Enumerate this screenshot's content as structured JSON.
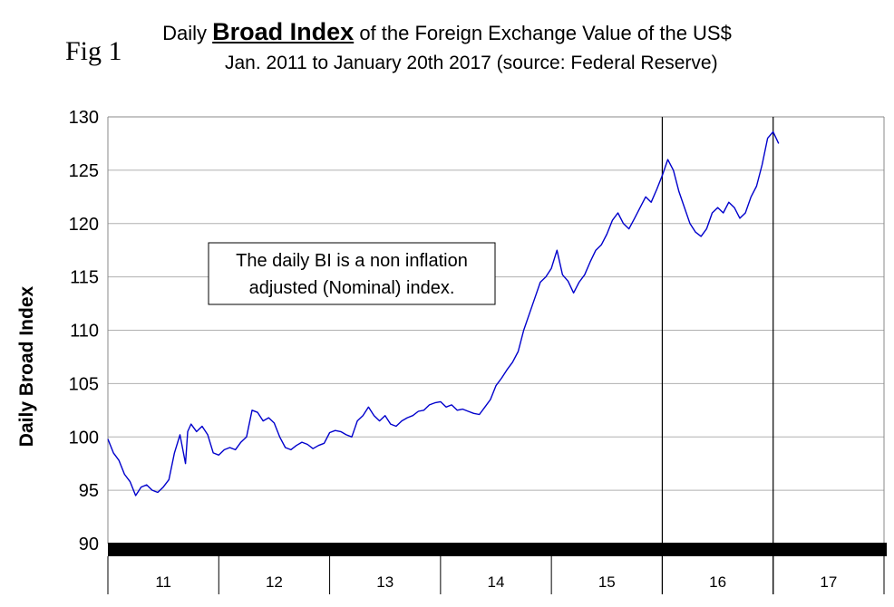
{
  "fig_label": "Fig 1",
  "chart_data": {
    "type": "line",
    "title": {
      "prefix": "Daily ",
      "bold": "Broad Index",
      "suffix": " of the Foreign Exchange Value of the US$"
    },
    "subtitle": "Jan. 2011 to January 20th 2017 (source: Federal Reserve)",
    "ylabel": "Daily Broad Index",
    "xlabel": "",
    "ylim": [
      90,
      130
    ],
    "yticks": [
      90,
      95,
      100,
      105,
      110,
      115,
      120,
      125,
      130
    ],
    "grid": true,
    "x_categories": [
      "11",
      "12",
      "13",
      "14",
      "15",
      "16",
      "17"
    ],
    "annotation": [
      "The daily BI is a non inflation",
      "adjusted (Nominal) index."
    ],
    "vertical_markers_year": [
      2016.0,
      2017.0
    ],
    "series": [
      {
        "name": "Broad Index",
        "color": "#0000cc",
        "x": [
          2011.0,
          2011.05,
          2011.1,
          2011.15,
          2011.2,
          2011.25,
          2011.3,
          2011.35,
          2011.4,
          2011.45,
          2011.5,
          2011.55,
          2011.6,
          2011.65,
          2011.7,
          2011.72,
          2011.75,
          2011.8,
          2011.85,
          2011.9,
          2011.95,
          2012.0,
          2012.05,
          2012.1,
          2012.15,
          2012.2,
          2012.25,
          2012.3,
          2012.35,
          2012.4,
          2012.45,
          2012.5,
          2012.55,
          2012.6,
          2012.65,
          2012.7,
          2012.75,
          2012.8,
          2012.85,
          2012.9,
          2012.95,
          2013.0,
          2013.05,
          2013.1,
          2013.15,
          2013.2,
          2013.25,
          2013.3,
          2013.35,
          2013.4,
          2013.45,
          2013.5,
          2013.55,
          2013.6,
          2013.65,
          2013.7,
          2013.75,
          2013.8,
          2013.85,
          2013.9,
          2013.95,
          2014.0,
          2014.05,
          2014.1,
          2014.15,
          2014.2,
          2014.25,
          2014.3,
          2014.35,
          2014.4,
          2014.45,
          2014.5,
          2014.55,
          2014.6,
          2014.65,
          2014.7,
          2014.75,
          2014.8,
          2014.85,
          2014.9,
          2014.95,
          2015.0,
          2015.05,
          2015.1,
          2015.15,
          2015.2,
          2015.25,
          2015.3,
          2015.35,
          2015.4,
          2015.45,
          2015.5,
          2015.55,
          2015.6,
          2015.65,
          2015.7,
          2015.75,
          2015.8,
          2015.85,
          2015.9,
          2015.95,
          2016.0,
          2016.05,
          2016.1,
          2016.15,
          2016.2,
          2016.25,
          2016.3,
          2016.35,
          2016.4,
          2016.45,
          2016.5,
          2016.55,
          2016.6,
          2016.65,
          2016.7,
          2016.75,
          2016.8,
          2016.85,
          2016.9,
          2016.95,
          2017.0,
          2017.05
        ],
        "values": [
          99.8,
          98.5,
          97.8,
          96.5,
          95.8,
          94.5,
          95.3,
          95.5,
          95.0,
          94.8,
          95.3,
          96.0,
          98.5,
          100.2,
          97.5,
          100.5,
          101.2,
          100.5,
          101.0,
          100.2,
          98.5,
          98.3,
          98.8,
          99.0,
          98.8,
          99.5,
          100.0,
          102.5,
          102.3,
          101.5,
          101.8,
          101.3,
          100.0,
          99.0,
          98.8,
          99.2,
          99.5,
          99.3,
          98.9,
          99.2,
          99.4,
          100.4,
          100.6,
          100.5,
          100.2,
          100.0,
          101.5,
          102.0,
          102.8,
          102.0,
          101.5,
          102.0,
          101.2,
          101.0,
          101.5,
          101.8,
          102.0,
          102.4,
          102.5,
          103.0,
          103.2,
          103.3,
          102.8,
          103.0,
          102.5,
          102.6,
          102.4,
          102.2,
          102.1,
          102.8,
          103.5,
          104.8,
          105.5,
          106.3,
          107.0,
          108.0,
          110.0,
          111.5,
          113.0,
          114.5,
          115.0,
          115.8,
          117.5,
          115.2,
          114.6,
          113.5,
          114.5,
          115.2,
          116.4,
          117.5,
          118.0,
          119.0,
          120.3,
          121.0,
          120.0,
          119.5,
          120.5,
          121.5,
          122.5,
          122.0,
          123.2,
          124.5,
          126.0,
          125.0,
          123.0,
          121.5,
          120.0,
          119.2,
          118.8,
          119.5,
          121.0,
          121.5,
          121.0,
          122.0,
          121.5,
          120.5,
          121.0,
          122.5,
          123.5,
          125.5,
          128.0,
          128.6,
          127.5
        ]
      }
    ]
  }
}
